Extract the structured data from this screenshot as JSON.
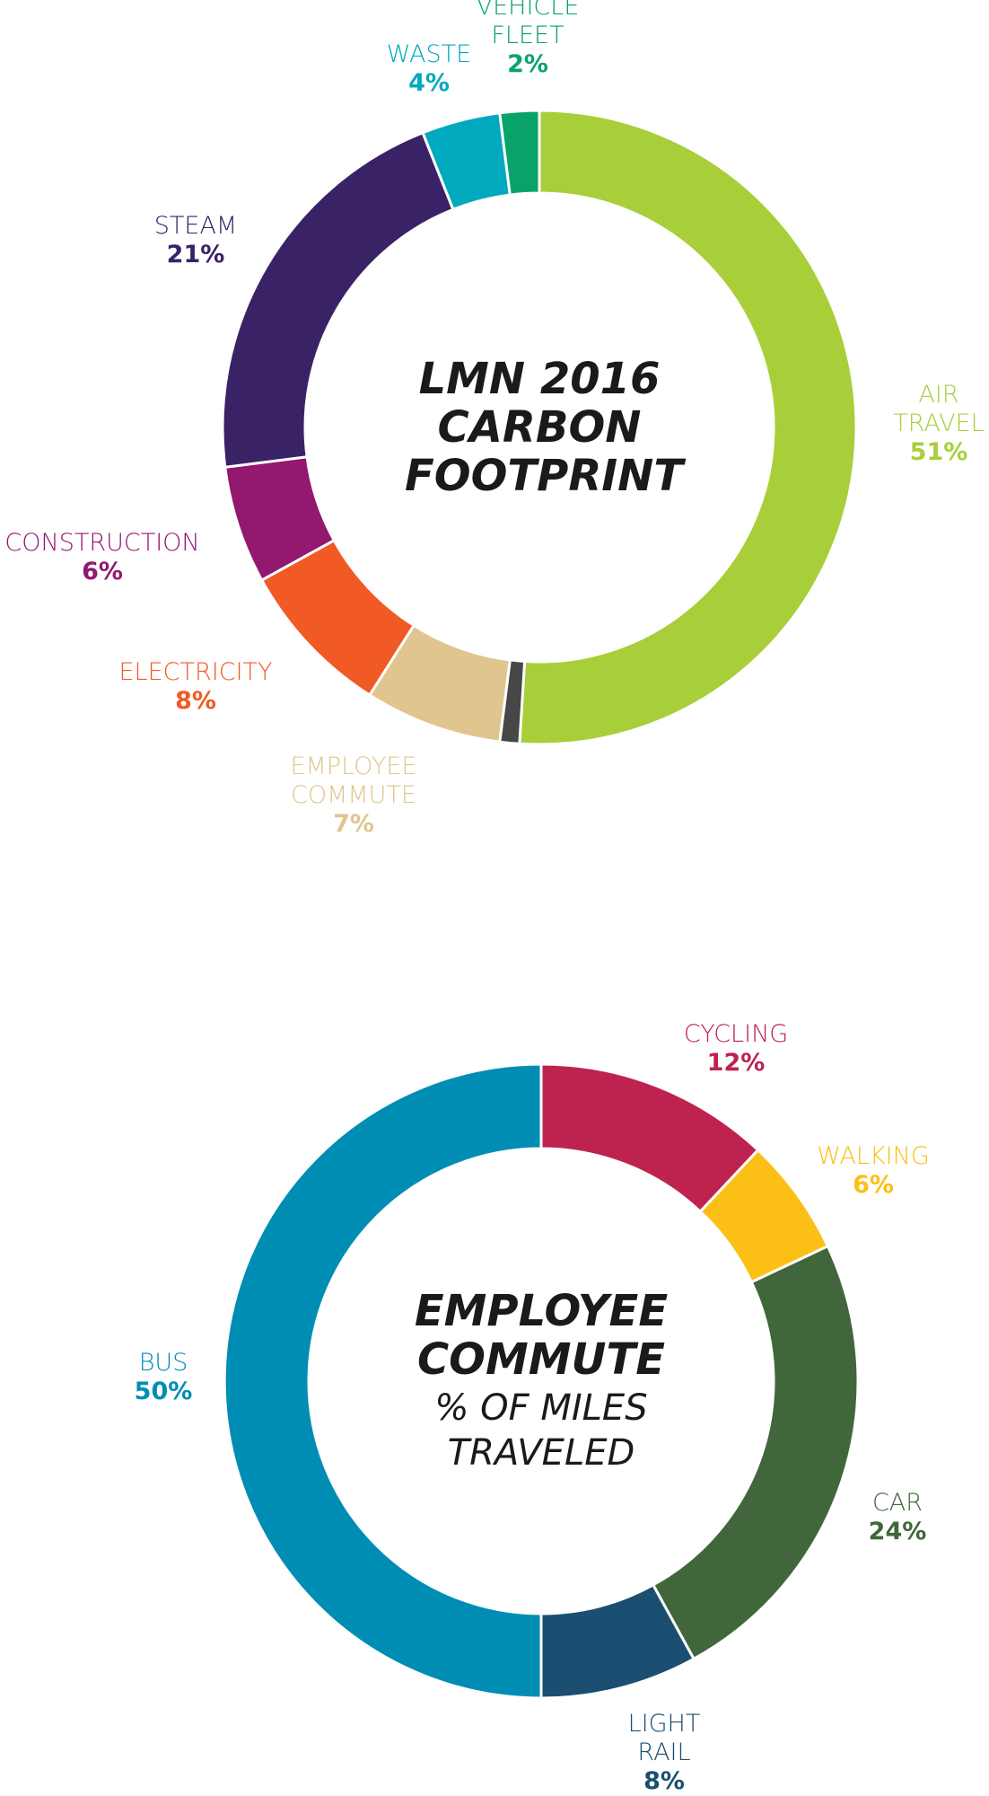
{
  "chart_data": [
    {
      "type": "donut",
      "title": "LMN 2016 CARBON FOOTPRINT",
      "categories": [
        "AIR TRAVEL",
        null,
        "EMPLOYEE COMMUTE",
        "ELECTRICITY",
        "CONSTRUCTION",
        "STEAM",
        "WASTE",
        "VEHICLE FLEET"
      ],
      "values": [
        51,
        1,
        7,
        8,
        6,
        21,
        4,
        2
      ],
      "value_labels": [
        "51%",
        null,
        "7%",
        "8%",
        "6%",
        "21%",
        "4%",
        "2%"
      ],
      "colors": [
        "#a8cf3a",
        "#474747",
        "#e0c58f",
        "#f15a24",
        "#93186f",
        "#3a2266",
        "#00a9bd",
        "#0aa26b"
      ]
    },
    {
      "type": "donut",
      "title": "EMPLOYEE COMMUTE",
      "subtitle": "% OF MILES TRAVELED",
      "categories": [
        "CYCLING",
        "WALKING",
        "CAR",
        "LIGHT RAIL",
        "BUS"
      ],
      "values": [
        12,
        6,
        24,
        8,
        50
      ],
      "value_labels": [
        "12%",
        "6%",
        "24%",
        "8%",
        "50%"
      ],
      "colors": [
        "#be2350",
        "#fbbf15",
        "#41663c",
        "#1b4f71",
        "#008db4"
      ]
    }
  ]
}
